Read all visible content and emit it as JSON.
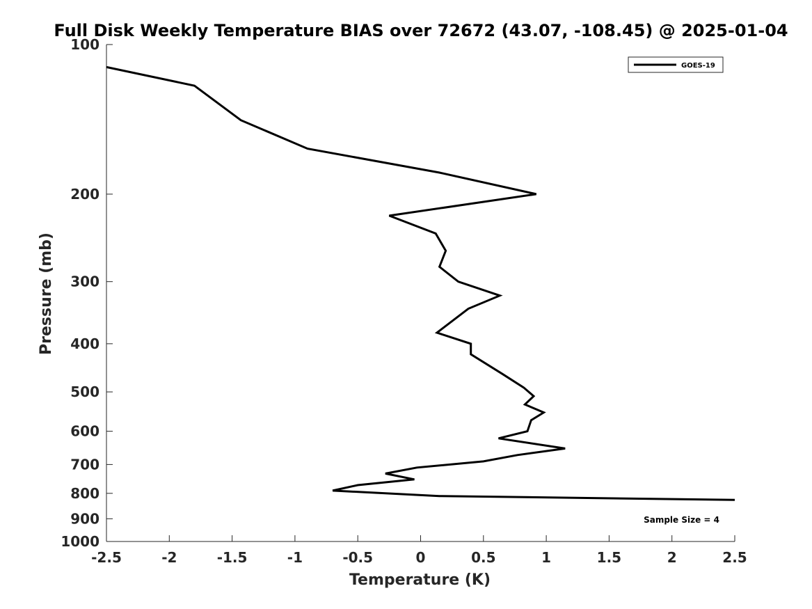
{
  "chart_data": {
    "type": "line",
    "title": "Full Disk Weekly Temperature BIAS over 72672 (43.07, -108.45) @ 2025-01-04",
    "xlabel": "Temperature (K)",
    "ylabel": "Pressure (mb)",
    "xlim": [
      -2.5,
      2.5
    ],
    "ylim": [
      100,
      1000
    ],
    "y_scale": "log",
    "y_reversed": true,
    "xticks": [
      -2.5,
      -2,
      -1.5,
      -1,
      -0.5,
      0,
      0.5,
      1,
      1.5,
      2,
      2.5
    ],
    "xtick_labels": [
      "-2.5",
      "-2",
      "-1.5",
      "-1",
      "-0.5",
      "0",
      "0.5",
      "1",
      "1.5",
      "2",
      "2.5"
    ],
    "yticks": [
      100,
      200,
      300,
      400,
      500,
      600,
      700,
      800,
      900,
      1000
    ],
    "ytick_labels": [
      "100",
      "200",
      "300",
      "400",
      "500",
      "600",
      "700",
      "800",
      "900",
      "1000"
    ],
    "grid": false,
    "legend": {
      "position": "top-right",
      "entries": [
        "GOES-19"
      ]
    },
    "annotation": "Sample Size = 4",
    "series": [
      {
        "name": "GOES-19",
        "color": "#000000",
        "points": [
          {
            "x": -2.5,
            "p": 111
          },
          {
            "x": -1.8,
            "p": 121
          },
          {
            "x": -1.43,
            "p": 142
          },
          {
            "x": -0.9,
            "p": 162
          },
          {
            "x": 0.15,
            "p": 181
          },
          {
            "x": 0.92,
            "p": 200
          },
          {
            "x": -0.25,
            "p": 221
          },
          {
            "x": 0.12,
            "p": 240
          },
          {
            "x": 0.2,
            "p": 260
          },
          {
            "x": 0.15,
            "p": 280
          },
          {
            "x": 0.3,
            "p": 300
          },
          {
            "x": 0.63,
            "p": 320
          },
          {
            "x": 0.38,
            "p": 340
          },
          {
            "x": 0.13,
            "p": 380
          },
          {
            "x": 0.4,
            "p": 400
          },
          {
            "x": 0.4,
            "p": 420
          },
          {
            "x": 0.65,
            "p": 460
          },
          {
            "x": 0.82,
            "p": 490
          },
          {
            "x": 0.9,
            "p": 510
          },
          {
            "x": 0.83,
            "p": 530
          },
          {
            "x": 0.98,
            "p": 550
          },
          {
            "x": 0.88,
            "p": 570
          },
          {
            "x": 0.85,
            "p": 600
          },
          {
            "x": 0.62,
            "p": 620
          },
          {
            "x": 1.15,
            "p": 650
          },
          {
            "x": 0.77,
            "p": 670
          },
          {
            "x": 0.5,
            "p": 690
          },
          {
            "x": -0.03,
            "p": 710
          },
          {
            "x": -0.28,
            "p": 730
          },
          {
            "x": -0.05,
            "p": 750
          },
          {
            "x": -0.5,
            "p": 770
          },
          {
            "x": -0.7,
            "p": 790
          },
          {
            "x": 0.15,
            "p": 810
          },
          {
            "x": 2.5,
            "p": 825
          }
        ]
      }
    ]
  }
}
